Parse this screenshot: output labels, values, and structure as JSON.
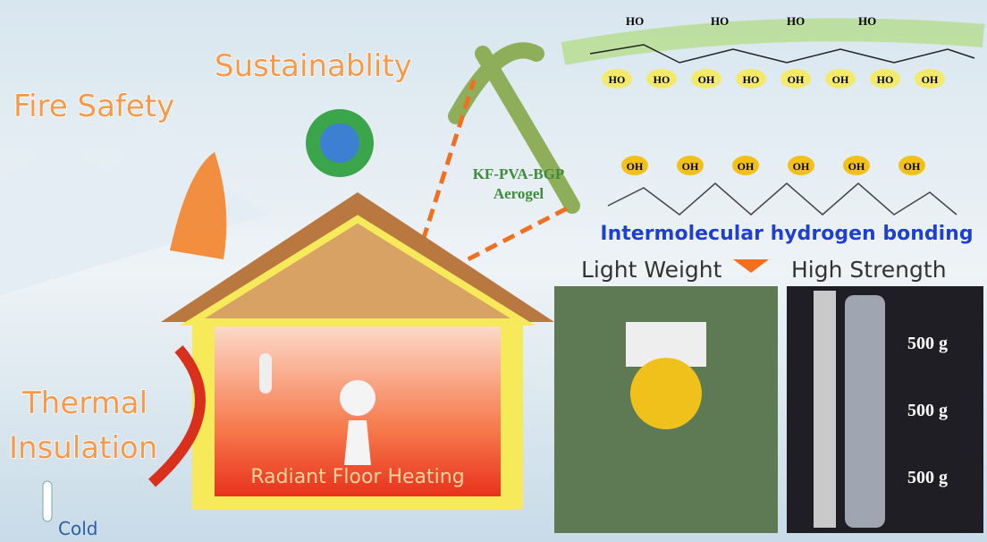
{
  "header": {
    "sustainability": "Sustainablity",
    "fire_safety": "Fire Safety"
  },
  "thermal": {
    "line1": "Thermal",
    "line2": "Insulation",
    "cold": "Cold"
  },
  "house": {
    "floor_label": "Radiant Floor Heating"
  },
  "aerogel": {
    "line1": "KF-PVA-BGP",
    "line2": "Aerogel"
  },
  "molecule": {
    "top_labels": [
      "HO",
      "HO",
      "HO",
      "HO"
    ],
    "ring_labels": [
      "HO",
      "HO",
      "OH",
      "HO",
      "OH",
      "OH",
      "HO",
      "OH"
    ],
    "chain_labels": [
      "OH",
      "OH",
      "OH",
      "OH",
      "OH",
      "OH"
    ],
    "caption": "Intermolecular hydrogen bonding"
  },
  "photos": {
    "light_weight": "Light Weight",
    "high_strength": "High Strength",
    "weights": [
      "500 g",
      "500 g",
      "500 g"
    ]
  }
}
